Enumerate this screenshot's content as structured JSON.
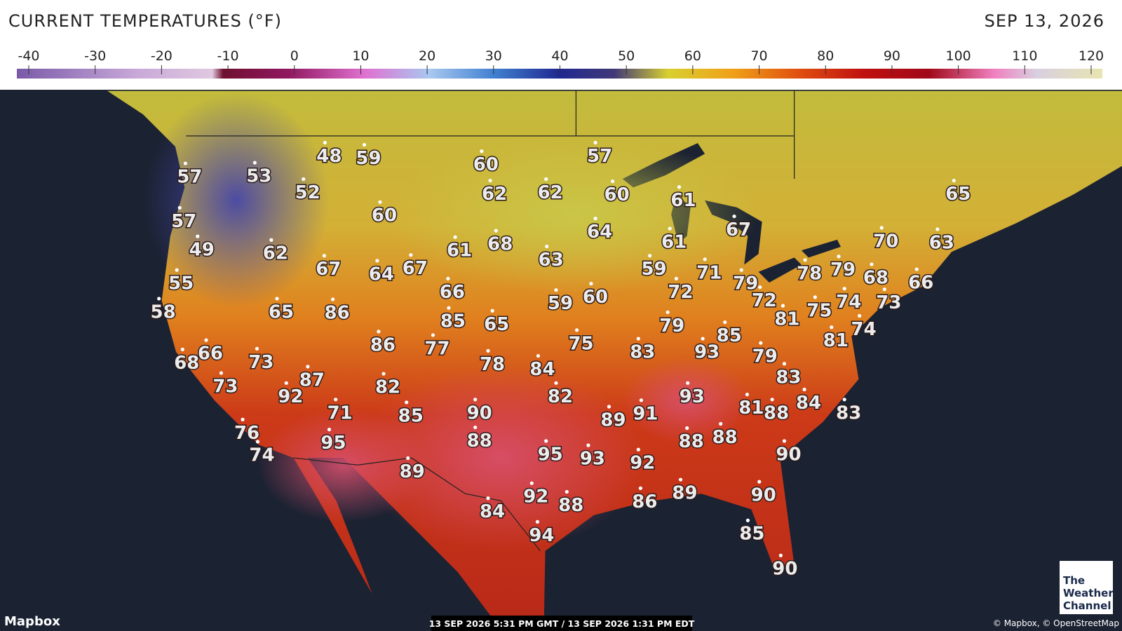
{
  "header": {
    "title": "CURRENT TEMPERATURES (°F)",
    "date": "SEP 13, 2026"
  },
  "scale": {
    "ticks": [
      -40,
      -30,
      -20,
      -10,
      0,
      10,
      20,
      30,
      40,
      50,
      60,
      70,
      80,
      90,
      100,
      110,
      120
    ]
  },
  "map": {
    "temperatures": [
      57,
      53,
      48,
      59,
      52,
      57,
      49,
      62,
      60,
      60,
      62,
      62,
      57,
      60,
      61,
      64,
      55,
      58,
      67,
      64,
      67,
      61,
      68,
      63,
      61,
      67,
      65,
      70,
      63,
      65,
      86,
      66,
      85,
      65,
      59,
      60,
      59,
      71,
      72,
      79,
      72,
      78,
      79,
      68,
      66,
      74,
      73,
      75,
      81,
      79,
      85,
      74,
      81,
      66,
      68,
      73,
      86,
      77,
      78,
      84,
      75,
      83,
      93,
      79,
      83,
      73,
      87,
      92,
      82,
      71,
      85,
      90,
      82,
      89,
      91,
      93,
      81,
      88,
      84,
      83,
      76,
      74,
      95,
      88,
      95,
      93,
      92,
      88,
      88,
      90,
      89,
      84,
      92,
      88,
      86,
      89,
      90,
      94,
      85,
      90
    ]
  },
  "footer": {
    "attribution_left": "Mapbox",
    "timestamp": "13 SEP 2026 5:31 PM GMT / 13 SEP 2026 1:31 PM EDT",
    "attribution_right": "© Mapbox, © OpenStreetMap",
    "logo": [
      "The",
      "Weather",
      "Channel"
    ]
  }
}
